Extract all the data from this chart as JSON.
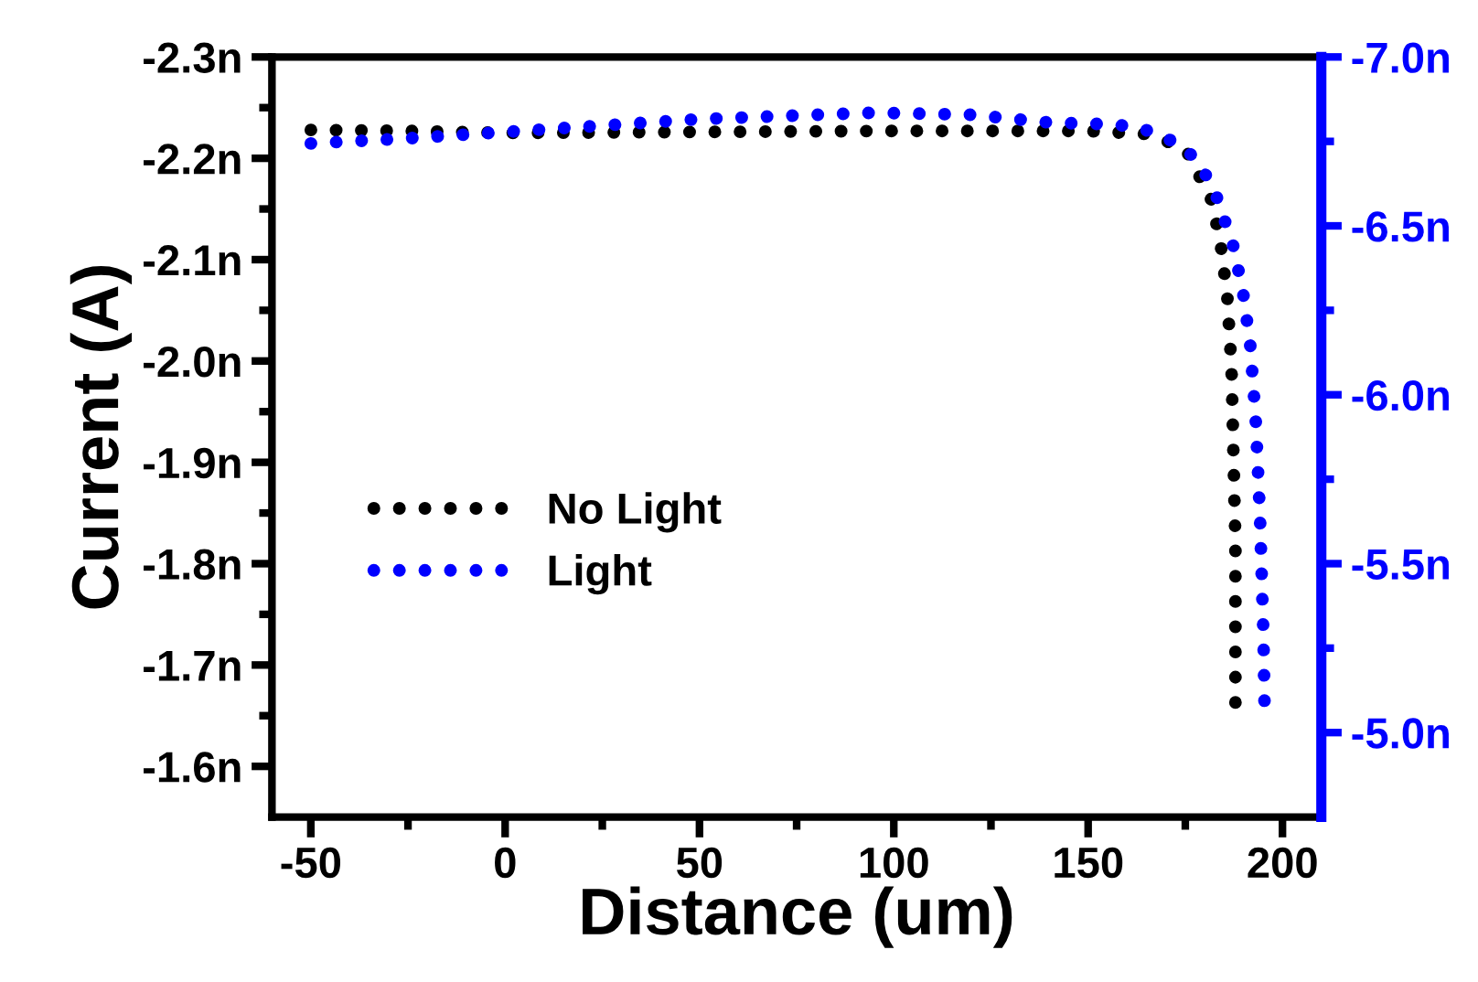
{
  "chart_data": {
    "type": "line",
    "xlabel": "Distance (um)",
    "ylabel": "Current (A)",
    "xlim": [
      -60,
      210
    ],
    "xticks": [
      -50,
      {
        "value": -25,
        "label": null
      },
      0,
      {
        "value": 25,
        "label": null
      },
      50,
      {
        "value": 75,
        "label": null
      },
      100,
      {
        "value": 125,
        "label": null
      },
      150,
      {
        "value": 175,
        "label": null
      },
      200
    ],
    "ylim": [
      -1.55,
      -2.3
    ],
    "yticks": [
      {
        "value": -2.3,
        "label": "-2.3n"
      },
      {
        "value": -2.25,
        "label": null
      },
      {
        "value": -2.2,
        "label": "-2.2n"
      },
      {
        "value": -2.15,
        "label": null
      },
      {
        "value": -2.1,
        "label": "-2.1n"
      },
      {
        "value": -2.05,
        "label": null
      },
      {
        "value": -2.0,
        "label": "-2.0n"
      },
      {
        "value": -1.95,
        "label": null
      },
      {
        "value": -1.9,
        "label": "-1.9n"
      },
      {
        "value": -1.85,
        "label": null
      },
      {
        "value": -1.8,
        "label": "-1.8n"
      },
      {
        "value": -1.75,
        "label": null
      },
      {
        "value": -1.7,
        "label": "-1.7n"
      },
      {
        "value": -1.65,
        "label": null
      },
      {
        "value": -1.6,
        "label": "-1.6n"
      }
    ],
    "y2lim": [
      -4.75,
      -7.0
    ],
    "y2ticks": [
      {
        "value": -7.0,
        "label": "-7.0n"
      },
      {
        "value": -6.75,
        "label": null
      },
      {
        "value": -6.5,
        "label": "-6.5n"
      },
      {
        "value": -6.25,
        "label": null
      },
      {
        "value": -6.0,
        "label": "-6.0n"
      },
      {
        "value": -5.75,
        "label": null
      },
      {
        "value": -5.5,
        "label": "-5.5n"
      },
      {
        "value": -5.25,
        "label": null
      },
      {
        "value": -5.0,
        "label": "-5.0n"
      }
    ],
    "line_style": "dotted",
    "legend": "left",
    "grid": false,
    "series": [
      {
        "name": "No Light",
        "color": "#000000",
        "x": [
          -50,
          -25,
          0,
          50,
          100,
          150,
          165,
          175,
          181.7,
          183,
          184.2,
          185.8,
          186.9,
          187.9,
          187.9
        ],
        "values": [
          -2.228,
          -2.227,
          -2.225,
          -2.226,
          -2.227,
          -2.227,
          -2.224,
          -2.21,
          -2.159,
          -2.136,
          -2.112,
          -2.064,
          -1.992,
          -1.82,
          -1.656
        ]
      },
      {
        "name": "Light",
        "color": "#0000ff",
        "axis": "y2",
        "x": [
          -50,
          -25,
          0,
          50,
          95,
          120,
          140,
          157,
          163.5,
          169.7,
          175.9,
          180.3,
          183.4,
          185.4,
          187.5,
          190,
          191.7,
          193.1,
          194.2,
          195.1,
          195.4
        ],
        "values": [
          -6.744,
          -6.759,
          -6.778,
          -6.816,
          -6.835,
          -6.829,
          -6.806,
          -6.8,
          -6.789,
          -6.764,
          -6.719,
          -6.65,
          -6.577,
          -6.507,
          -6.435,
          -6.292,
          -6.148,
          -5.931,
          -5.646,
          -5.29,
          -5.073
        ]
      }
    ]
  }
}
